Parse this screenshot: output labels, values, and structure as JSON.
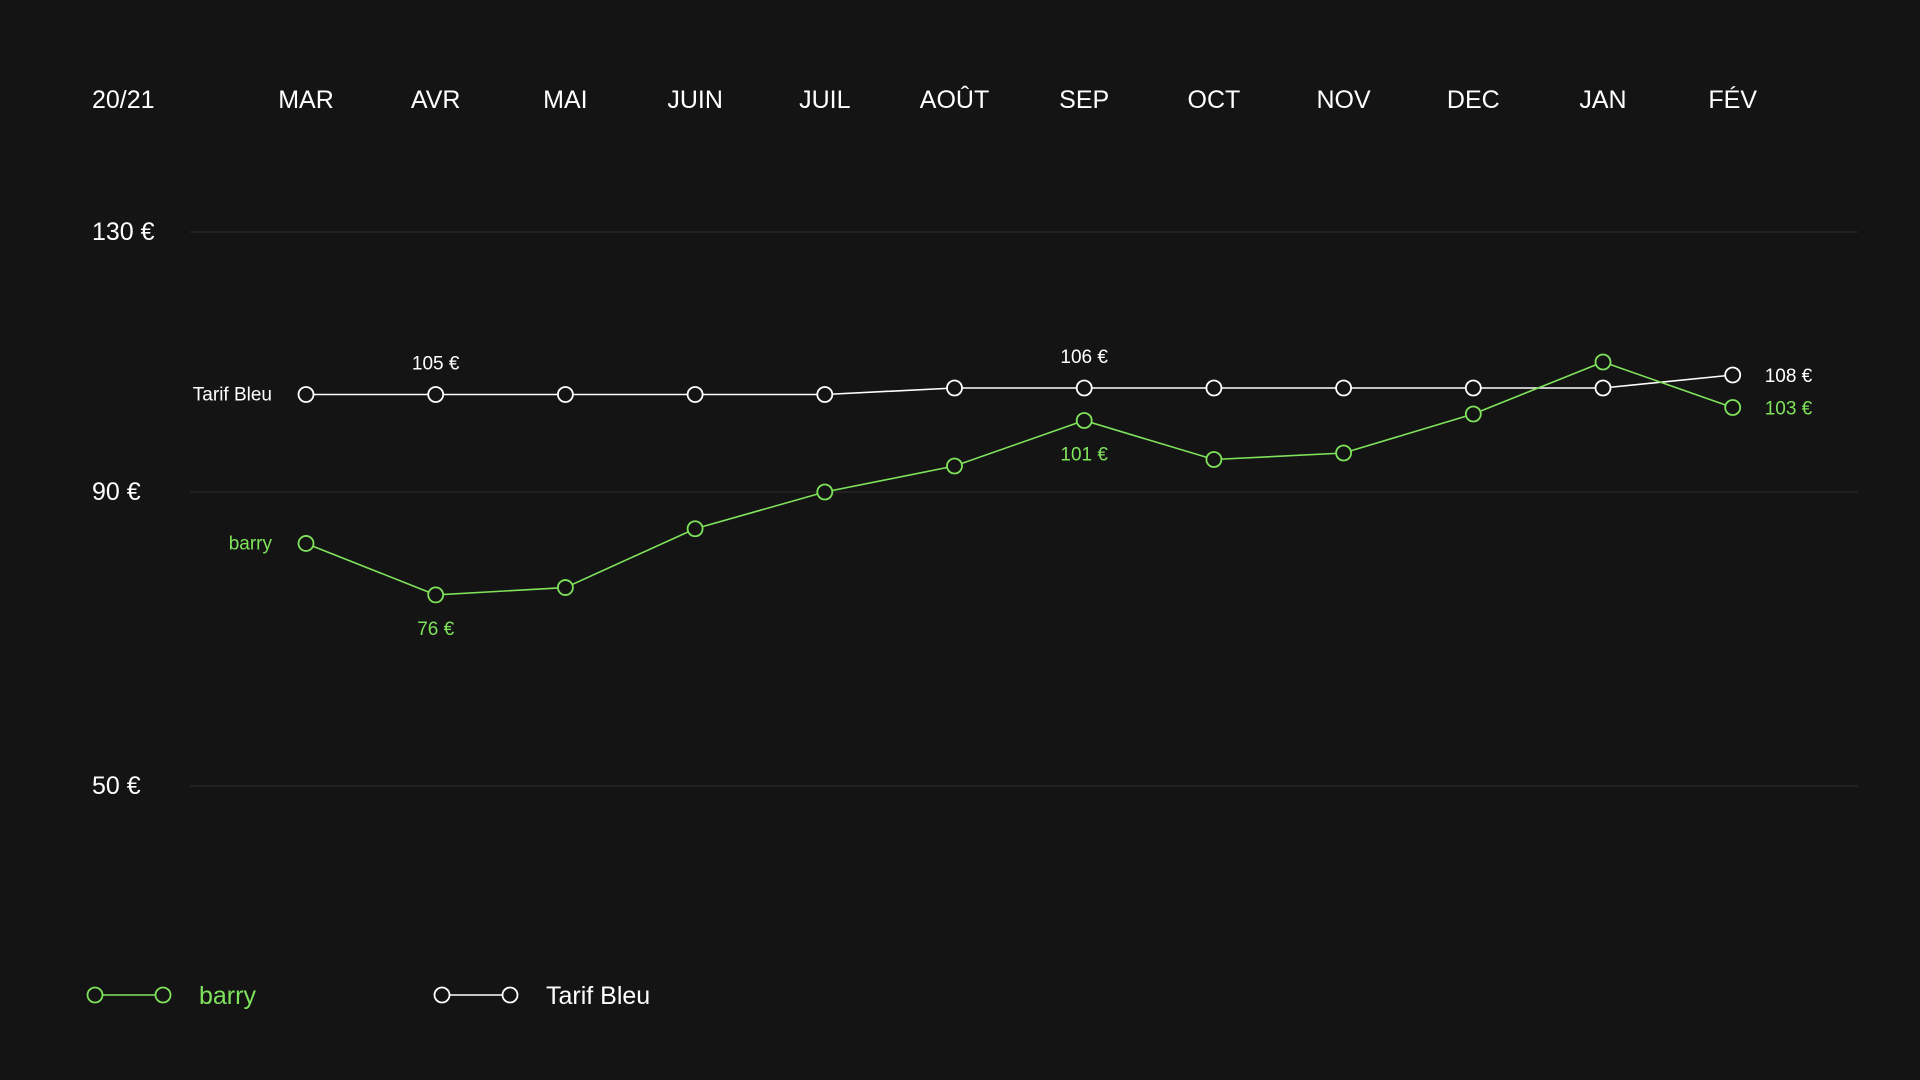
{
  "colors": {
    "background": "#141414",
    "grid": "#2c2c2c",
    "barry": "#7fe35b",
    "tarif_bleu": "#ffffff"
  },
  "chart_data": {
    "type": "line",
    "period_label": "20/21",
    "categories": [
      "MAR",
      "AVR",
      "MAI",
      "JUIN",
      "JUIL",
      "AOÛT",
      "SEP",
      "OCT",
      "NOV",
      "DEC",
      "JAN",
      "FÉV"
    ],
    "y_ticks": [
      {
        "value": 130,
        "label": "130 €"
      },
      {
        "value": 90,
        "label": "90 €"
      },
      {
        "value": 50,
        "label": "50 €"
      }
    ],
    "y_axis_breakpoints": [
      [
        50,
        90
      ],
      [
        90,
        130
      ]
    ],
    "grid": true,
    "legend_position": "bottom-left",
    "series": [
      {
        "key": "tarif_bleu",
        "name": "Tarif Bleu",
        "color": "#ffffff",
        "values": [
          105,
          105,
          105,
          105,
          105,
          106,
          106,
          106,
          106,
          106,
          106,
          108
        ],
        "annotations": [
          {
            "index": 1,
            "label": "105 €",
            "position": "above"
          },
          {
            "index": 6,
            "label": "106 €",
            "position": "above"
          },
          {
            "index": 11,
            "label": "108 €",
            "position": "right"
          }
        ]
      },
      {
        "key": "barry",
        "name": "barry",
        "color": "#7fe35b",
        "values": [
          83,
          76,
          77,
          85,
          90,
          94,
          101,
          95,
          96,
          102,
          110,
          103
        ],
        "annotations": [
          {
            "index": 1,
            "label": "76 €",
            "position": "below"
          },
          {
            "index": 6,
            "label": "101 €",
            "position": "below"
          },
          {
            "index": 11,
            "label": "103 €",
            "position": "right"
          }
        ]
      }
    ],
    "legend": [
      {
        "key": "barry",
        "label": "barry",
        "color": "#7fe35b"
      },
      {
        "key": "tarif_bleu",
        "label": "Tarif Bleu",
        "color": "#ffffff"
      }
    ]
  }
}
